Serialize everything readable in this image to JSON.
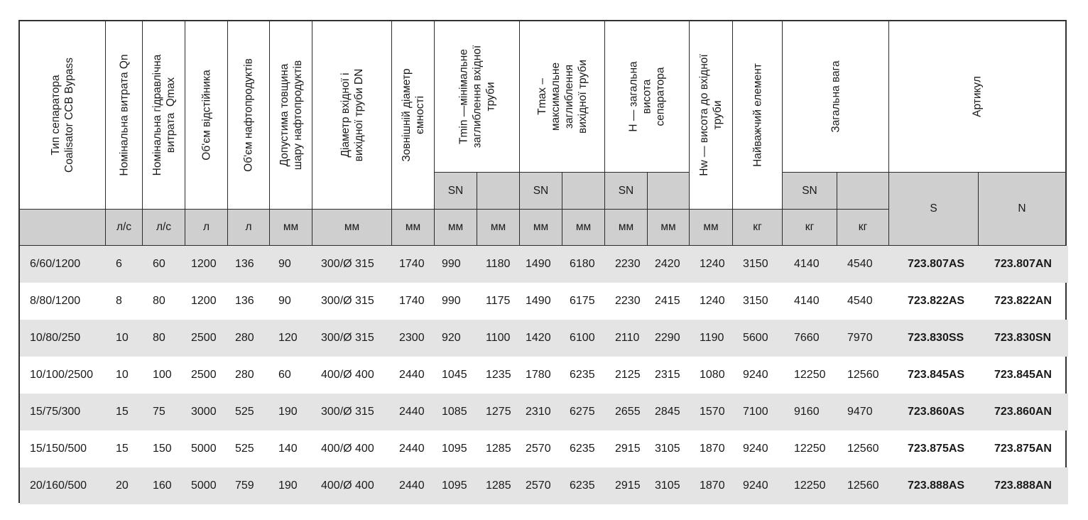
{
  "headers": [
    {
      "key": "type",
      "label": "Тип сепаратора\nCoalisator CCB Bypass"
    },
    {
      "key": "qn",
      "label": "Номінальна витрата Qn"
    },
    {
      "key": "qmax",
      "label": "Номінальна гідравлічна\nвитрата  Qmax"
    },
    {
      "key": "vol",
      "label": "Об'єм відстійника"
    },
    {
      "key": "oil",
      "label": "Об'єм нафтопродуктів"
    },
    {
      "key": "thick",
      "label": "Допустима товщина\nшару нафтопродуктів"
    },
    {
      "key": "dn",
      "label": "Діаметр вхідної і\nвихідної труби DN"
    },
    {
      "key": "outer",
      "label": "Зовнішній діаметр\nємності"
    },
    {
      "key": "tmin",
      "label": "Tmin —мінімальне\nзаглиблення вхідної\nтруби"
    },
    {
      "key": "tmax",
      "label": "Tmax –\nмаксимальне\nзаглиблення\nвихідної труби"
    },
    {
      "key": "h",
      "label": "H — загальна\nвисота\nсепаратора"
    },
    {
      "key": "hw",
      "label": "Hw — висота до вхідної\nтруби"
    },
    {
      "key": "heavy",
      "label": "Найважчий елемент"
    },
    {
      "key": "weight",
      "label": "Загальна вага"
    },
    {
      "key": "article",
      "label": "Артикул"
    }
  ],
  "sn_label": "SN",
  "article_sub": [
    "S",
    "N"
  ],
  "units": [
    "",
    "л/с",
    "л/с",
    "л",
    "л",
    "мм",
    "мм",
    "мм",
    "мм",
    "мм",
    "мм",
    "мм",
    "мм",
    "мм",
    "мм",
    "кг",
    "кг",
    "кг"
  ],
  "rows": [
    [
      "6/60/1200",
      "6",
      "60",
      "1200",
      "136",
      "90",
      "300/Ø 315",
      "1740",
      "990",
      "1180",
      "1490",
      "6180",
      "2230",
      "2420",
      "1240",
      "3150",
      "4140",
      "4540",
      "723.807AS",
      "723.807AN"
    ],
    [
      "8/80/1200",
      "8",
      "80",
      "1200",
      "136",
      "90",
      "300/Ø 315",
      "1740",
      "990",
      "1175",
      "1490",
      "6175",
      "2230",
      "2415",
      "1240",
      "3150",
      "4140",
      "4540",
      "723.822AS",
      "723.822AN"
    ],
    [
      "10/80/250",
      "10",
      "80",
      "2500",
      "280",
      "120",
      "300/Ø 315",
      "2300",
      "920",
      "1100",
      "1420",
      "6100",
      "2110",
      "2290",
      "1190",
      "5600",
      "7660",
      "7970",
      "723.830SS",
      "723.830SN"
    ],
    [
      "10/100/2500",
      "10",
      "100",
      "2500",
      "280",
      "60",
      "400/Ø 400",
      "2440",
      "1045",
      "1235",
      "1780",
      "6235",
      "2125",
      "2315",
      "1080",
      "9240",
      "12250",
      "12560",
      "723.845AS",
      "723.845AN"
    ],
    [
      "15/75/300",
      "15",
      "75",
      "3000",
      "525",
      "190",
      "300/Ø 315",
      "2440",
      "1085",
      "1275",
      "2310",
      "6275",
      "2655",
      "2845",
      "1570",
      "7100",
      "9160",
      "9470",
      "723.860AS",
      "723.860AN"
    ],
    [
      "15/150/500",
      "15",
      "150",
      "5000",
      "525",
      "140",
      "400/Ø 400",
      "2440",
      "1095",
      "1285",
      "2570",
      "6235",
      "2915",
      "3105",
      "1870",
      "9240",
      "12250",
      "12560",
      "723.875AS",
      "723.875AN"
    ],
    [
      "20/160/500",
      "20",
      "160",
      "5000",
      "759",
      "190",
      "400/Ø 400",
      "2440",
      "1095",
      "1285",
      "2570",
      "6235",
      "2915",
      "3105",
      "1870",
      "9240",
      "12250",
      "12560",
      "723.888AS",
      "723.888AN"
    ]
  ]
}
